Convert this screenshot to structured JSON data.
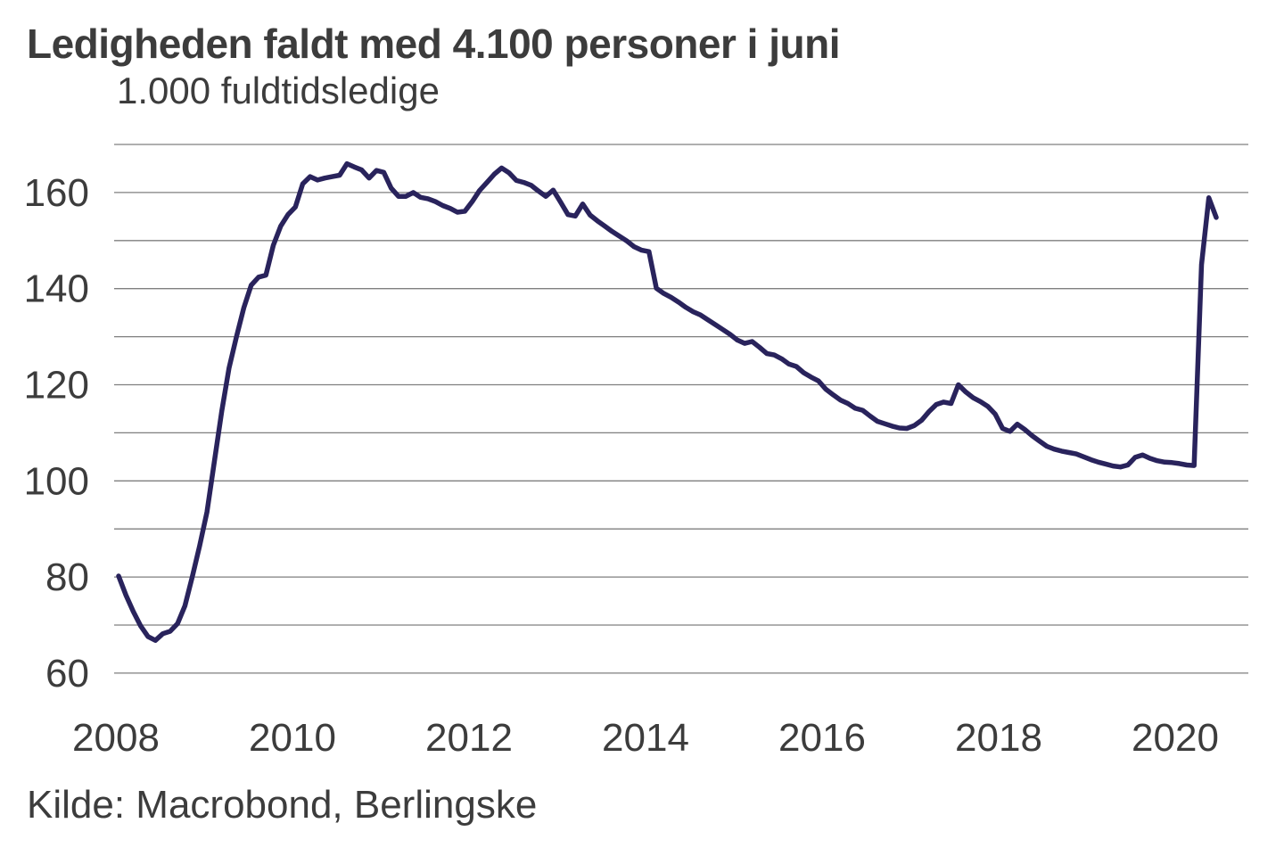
{
  "header": {
    "title": "Ledigheden faldt med 4.100 personer i juni",
    "subtitle": "1.000 fuldtidsledige"
  },
  "footer": {
    "source": "Kilde: Macrobond, Berlingske"
  },
  "chart_data": {
    "type": "line",
    "title": "Ledigheden faldt med 4.100 personer i juni",
    "subtitle": "1.000 fuldtidsledige",
    "source": "Kilde: Macrobond, Berlingske",
    "frequency": "monthly",
    "x_start": "2008-01",
    "x_end": "2020-06",
    "x_tick_labels": [
      "2008",
      "2010",
      "2012",
      "2014",
      "2016",
      "2018",
      "2020"
    ],
    "y_tick_labels": [
      160,
      140,
      120,
      100,
      80,
      60
    ],
    "y_gridlines": [
      170,
      160,
      150,
      140,
      130,
      120,
      110,
      100,
      90,
      80,
      70,
      60
    ],
    "ylim": [
      60,
      170
    ],
    "grid": true,
    "legend": "none",
    "background_color": "#ffffff",
    "grid_color": "#7f7f7f",
    "text_color": "#3c3c3c",
    "line_color": "#29235c",
    "series": [
      {
        "name": "Ledige (1.000 fuldtidsledige)",
        "color": "#29235c",
        "values": [
          80.2,
          76.2,
          72.8,
          69.8,
          67.6,
          66.8,
          68.2,
          68.7,
          70.3,
          74.0,
          80.0,
          86.5,
          93.5,
          104.0,
          114.5,
          123.5,
          130.0,
          136.0,
          140.7,
          142.4,
          142.8,
          149.0,
          153.0,
          155.4,
          157.0,
          161.8,
          163.3,
          162.6,
          163.0,
          163.3,
          163.6,
          166.0,
          165.3,
          164.7,
          163.0,
          164.6,
          164.2,
          160.9,
          159.2,
          159.2,
          160.0,
          159.0,
          158.7,
          158.1,
          157.3,
          156.7,
          155.9,
          156.1,
          158.1,
          160.4,
          162.1,
          163.8,
          165.1,
          164.1,
          162.5,
          162.1,
          161.5,
          160.3,
          159.2,
          160.5,
          158.0,
          155.4,
          155.1,
          157.6,
          155.3,
          154.1,
          153.0,
          151.9,
          150.9,
          149.9,
          148.7,
          148.0,
          147.7,
          140.1,
          139.0,
          138.2,
          137.2,
          136.1,
          135.2,
          134.5,
          133.5,
          132.5,
          131.5,
          130.5,
          129.3,
          128.6,
          129.0,
          127.8,
          126.5,
          126.2,
          125.4,
          124.3,
          123.8,
          122.5,
          121.6,
          120.8,
          119.1,
          117.9,
          116.8,
          116.1,
          115.1,
          114.7,
          113.5,
          112.4,
          111.9,
          111.4,
          111.0,
          110.9,
          111.5,
          112.6,
          114.4,
          115.9,
          116.4,
          116.1,
          120.0,
          118.5,
          117.3,
          116.5,
          115.5,
          113.9,
          110.9,
          110.3,
          111.8,
          110.7,
          109.4,
          108.3,
          107.2,
          106.6,
          106.2,
          105.9,
          105.6,
          105.0,
          104.4,
          103.9,
          103.5,
          103.1,
          102.9,
          103.3,
          104.9,
          105.4,
          104.7,
          104.2,
          103.9,
          103.8,
          103.6,
          103.3,
          103.2,
          145.0,
          158.9,
          154.8
        ]
      }
    ],
    "annotations": {
      "june_change": "-4.100 personer",
      "last_value": 154.8,
      "peak_value_may_2020": 158.9
    }
  }
}
